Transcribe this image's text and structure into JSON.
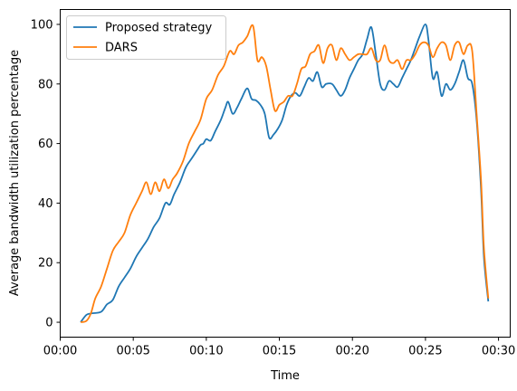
{
  "chart_data": {
    "type": "line",
    "xlabel": "Time",
    "ylabel": "Average bandwidth utilization percentage",
    "x_unit": "minutes",
    "xlim": [
      0,
      30.8
    ],
    "ylim": [
      -5,
      105
    ],
    "x_ticks": [
      {
        "value": 0,
        "label": "00:00"
      },
      {
        "value": 5,
        "label": "00:05"
      },
      {
        "value": 10,
        "label": "00:10"
      },
      {
        "value": 15,
        "label": "00:15"
      },
      {
        "value": 20,
        "label": "00:20"
      },
      {
        "value": 25,
        "label": "00:25"
      },
      {
        "value": 30,
        "label": "00:30"
      }
    ],
    "y_ticks": [
      0,
      20,
      40,
      60,
      80,
      100
    ],
    "grid": false,
    "legend_position": "top-left",
    "series": [
      {
        "name": "Proposed strategy",
        "color": "#1f77b4",
        "points": [
          [
            1.4,
            0
          ],
          [
            1.8,
            2.5
          ],
          [
            2.2,
            3
          ],
          [
            2.8,
            3.5
          ],
          [
            3.2,
            6
          ],
          [
            3.6,
            7.5
          ],
          [
            4.0,
            12
          ],
          [
            4.4,
            15
          ],
          [
            4.8,
            18
          ],
          [
            5.2,
            22
          ],
          [
            5.6,
            25
          ],
          [
            6.0,
            28
          ],
          [
            6.4,
            32
          ],
          [
            6.8,
            35
          ],
          [
            7.2,
            40
          ],
          [
            7.5,
            39.5
          ],
          [
            7.8,
            43
          ],
          [
            8.2,
            47
          ],
          [
            8.6,
            52
          ],
          [
            9.0,
            55
          ],
          [
            9.4,
            58
          ],
          [
            9.6,
            59.5
          ],
          [
            9.8,
            60
          ],
          [
            10.0,
            61.5
          ],
          [
            10.3,
            61
          ],
          [
            10.6,
            64
          ],
          [
            11.0,
            68
          ],
          [
            11.3,
            72
          ],
          [
            11.5,
            74
          ],
          [
            11.8,
            70
          ],
          [
            12.1,
            72
          ],
          [
            12.4,
            75
          ],
          [
            12.8,
            78.5
          ],
          [
            13.1,
            75
          ],
          [
            13.4,
            74.5
          ],
          [
            13.7,
            73
          ],
          [
            14.0,
            70
          ],
          [
            14.3,
            62
          ],
          [
            14.6,
            63
          ],
          [
            14.9,
            65
          ],
          [
            15.2,
            68
          ],
          [
            15.5,
            73
          ],
          [
            15.8,
            76
          ],
          [
            16.1,
            77
          ],
          [
            16.4,
            76
          ],
          [
            16.7,
            79
          ],
          [
            17.0,
            82
          ],
          [
            17.3,
            81
          ],
          [
            17.6,
            84
          ],
          [
            17.9,
            79
          ],
          [
            18.2,
            80
          ],
          [
            18.6,
            80
          ],
          [
            18.9,
            78
          ],
          [
            19.2,
            76
          ],
          [
            19.5,
            78
          ],
          [
            19.8,
            82
          ],
          [
            20.1,
            85
          ],
          [
            20.4,
            88
          ],
          [
            20.7,
            90
          ],
          [
            21.0,
            95
          ],
          [
            21.3,
            99
          ],
          [
            21.6,
            90
          ],
          [
            21.9,
            80
          ],
          [
            22.2,
            78
          ],
          [
            22.5,
            81
          ],
          [
            22.8,
            80
          ],
          [
            23.1,
            79
          ],
          [
            23.4,
            82
          ],
          [
            23.7,
            85
          ],
          [
            24.0,
            88
          ],
          [
            24.3,
            92
          ],
          [
            24.6,
            96
          ],
          [
            25.0,
            100
          ],
          [
            25.2,
            95
          ],
          [
            25.5,
            82
          ],
          [
            25.8,
            84
          ],
          [
            26.1,
            76
          ],
          [
            26.4,
            80
          ],
          [
            26.7,
            78
          ],
          [
            27.0,
            80
          ],
          [
            27.3,
            84
          ],
          [
            27.6,
            88
          ],
          [
            27.9,
            82
          ],
          [
            28.2,
            80
          ],
          [
            28.5,
            68
          ],
          [
            28.8,
            45
          ],
          [
            29.0,
            22
          ],
          [
            29.3,
            7
          ]
        ]
      },
      {
        "name": "DARS",
        "color": "#ff7f0e",
        "points": [
          [
            1.4,
            0
          ],
          [
            1.8,
            0.5
          ],
          [
            2.1,
            3
          ],
          [
            2.4,
            8
          ],
          [
            2.8,
            12
          ],
          [
            3.2,
            18
          ],
          [
            3.6,
            24
          ],
          [
            4.0,
            27
          ],
          [
            4.4,
            30
          ],
          [
            4.8,
            36
          ],
          [
            5.2,
            40
          ],
          [
            5.6,
            44
          ],
          [
            5.9,
            47
          ],
          [
            6.2,
            43
          ],
          [
            6.5,
            47
          ],
          [
            6.8,
            44
          ],
          [
            7.1,
            48
          ],
          [
            7.4,
            45
          ],
          [
            7.7,
            48
          ],
          [
            8.0,
            50
          ],
          [
            8.4,
            54
          ],
          [
            8.8,
            60
          ],
          [
            9.2,
            64
          ],
          [
            9.6,
            68
          ],
          [
            10.0,
            75
          ],
          [
            10.4,
            78
          ],
          [
            10.8,
            83
          ],
          [
            11.2,
            86
          ],
          [
            11.6,
            91
          ],
          [
            11.9,
            90
          ],
          [
            12.2,
            93
          ],
          [
            12.5,
            94
          ],
          [
            12.8,
            96
          ],
          [
            13.2,
            99.5
          ],
          [
            13.5,
            88
          ],
          [
            13.8,
            89
          ],
          [
            14.1,
            86
          ],
          [
            14.4,
            78
          ],
          [
            14.7,
            71
          ],
          [
            15.0,
            73
          ],
          [
            15.3,
            74
          ],
          [
            15.6,
            76
          ],
          [
            15.9,
            76
          ],
          [
            16.2,
            80
          ],
          [
            16.5,
            85
          ],
          [
            16.8,
            86
          ],
          [
            17.1,
            90
          ],
          [
            17.4,
            91
          ],
          [
            17.7,
            93
          ],
          [
            18.0,
            87
          ],
          [
            18.3,
            92
          ],
          [
            18.6,
            93
          ],
          [
            18.9,
            88
          ],
          [
            19.2,
            92
          ],
          [
            19.5,
            90
          ],
          [
            19.8,
            88
          ],
          [
            20.1,
            89
          ],
          [
            20.4,
            90
          ],
          [
            20.7,
            90
          ],
          [
            21.0,
            90
          ],
          [
            21.3,
            92
          ],
          [
            21.6,
            88
          ],
          [
            21.9,
            88
          ],
          [
            22.2,
            93
          ],
          [
            22.5,
            88
          ],
          [
            22.8,
            87
          ],
          [
            23.1,
            88
          ],
          [
            23.4,
            85
          ],
          [
            23.7,
            88
          ],
          [
            24.0,
            88
          ],
          [
            24.3,
            90
          ],
          [
            24.6,
            93
          ],
          [
            24.9,
            94
          ],
          [
            25.2,
            93
          ],
          [
            25.5,
            89
          ],
          [
            25.8,
            92
          ],
          [
            26.1,
            94
          ],
          [
            26.4,
            93
          ],
          [
            26.7,
            88
          ],
          [
            27.0,
            93
          ],
          [
            27.3,
            94
          ],
          [
            27.6,
            90
          ],
          [
            27.9,
            93
          ],
          [
            28.2,
            91
          ],
          [
            28.5,
            70
          ],
          [
            28.8,
            48
          ],
          [
            29.0,
            25
          ],
          [
            29.3,
            8
          ]
        ]
      }
    ]
  }
}
